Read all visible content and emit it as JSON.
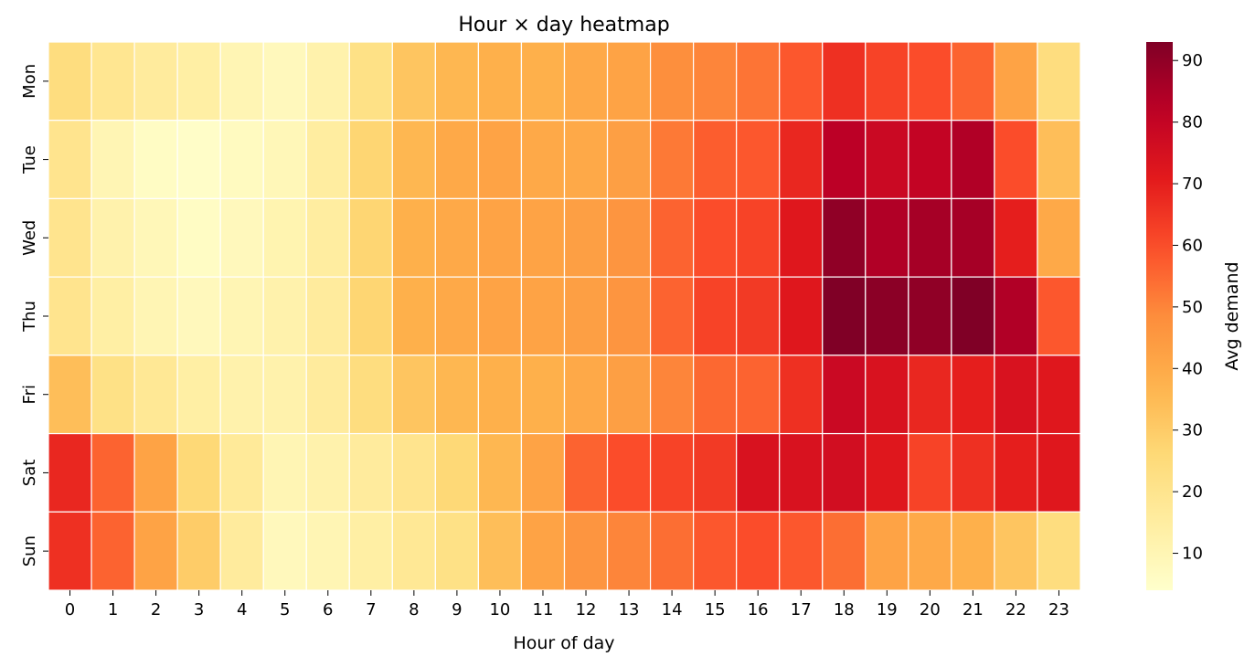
{
  "chart_data": {
    "type": "heatmap",
    "title": "Hour × day heatmap",
    "xlabel": "Hour of day",
    "ylabel": "",
    "x": [
      "0",
      "1",
      "2",
      "3",
      "4",
      "5",
      "6",
      "7",
      "8",
      "9",
      "10",
      "11",
      "12",
      "13",
      "14",
      "15",
      "16",
      "17",
      "18",
      "19",
      "20",
      "21",
      "22",
      "23"
    ],
    "y": [
      "Mon",
      "Tue",
      "Wed",
      "Thu",
      "Fri",
      "Sat",
      "Sun"
    ],
    "values": [
      [
        24,
        19,
        16,
        14,
        10,
        8,
        12,
        22,
        32,
        36,
        38,
        38,
        40,
        42,
        48,
        50,
        53,
        58,
        66,
        62,
        60,
        56,
        42,
        24
      ],
      [
        20,
        10,
        6,
        5,
        7,
        9,
        15,
        27,
        36,
        40,
        42,
        40,
        40,
        43,
        52,
        57,
        58,
        68,
        82,
        78,
        80,
        84,
        60,
        34
      ],
      [
        20,
        12,
        9,
        6,
        8,
        11,
        15,
        27,
        38,
        40,
        42,
        42,
        43,
        46,
        56,
        60,
        62,
        72,
        90,
        84,
        86,
        86,
        70,
        40
      ],
      [
        20,
        14,
        10,
        8,
        10,
        12,
        16,
        27,
        38,
        40,
        42,
        42,
        43,
        46,
        56,
        62,
        64,
        72,
        93,
        91,
        90,
        93,
        84,
        58
      ],
      [
        34,
        22,
        18,
        14,
        12,
        12,
        16,
        24,
        32,
        36,
        38,
        38,
        40,
        43,
        50,
        55,
        56,
        66,
        78,
        74,
        68,
        70,
        74,
        72
      ],
      [
        68,
        56,
        42,
        26,
        17,
        10,
        12,
        16,
        20,
        26,
        36,
        42,
        56,
        60,
        62,
        64,
        74,
        74,
        76,
        72,
        62,
        66,
        70,
        72
      ],
      [
        66,
        56,
        42,
        30,
        16,
        8,
        10,
        14,
        18,
        22,
        34,
        42,
        46,
        50,
        54,
        58,
        60,
        58,
        54,
        42,
        40,
        38,
        32,
        24
      ]
    ],
    "colorbar": {
      "label": "Avg demand",
      "ticks": [
        10,
        20,
        30,
        40,
        50,
        60,
        70,
        80,
        90
      ],
      "range": [
        4,
        93
      ],
      "colormap": "YlOrRd"
    },
    "grid": false,
    "legend": "colorbar-right"
  }
}
